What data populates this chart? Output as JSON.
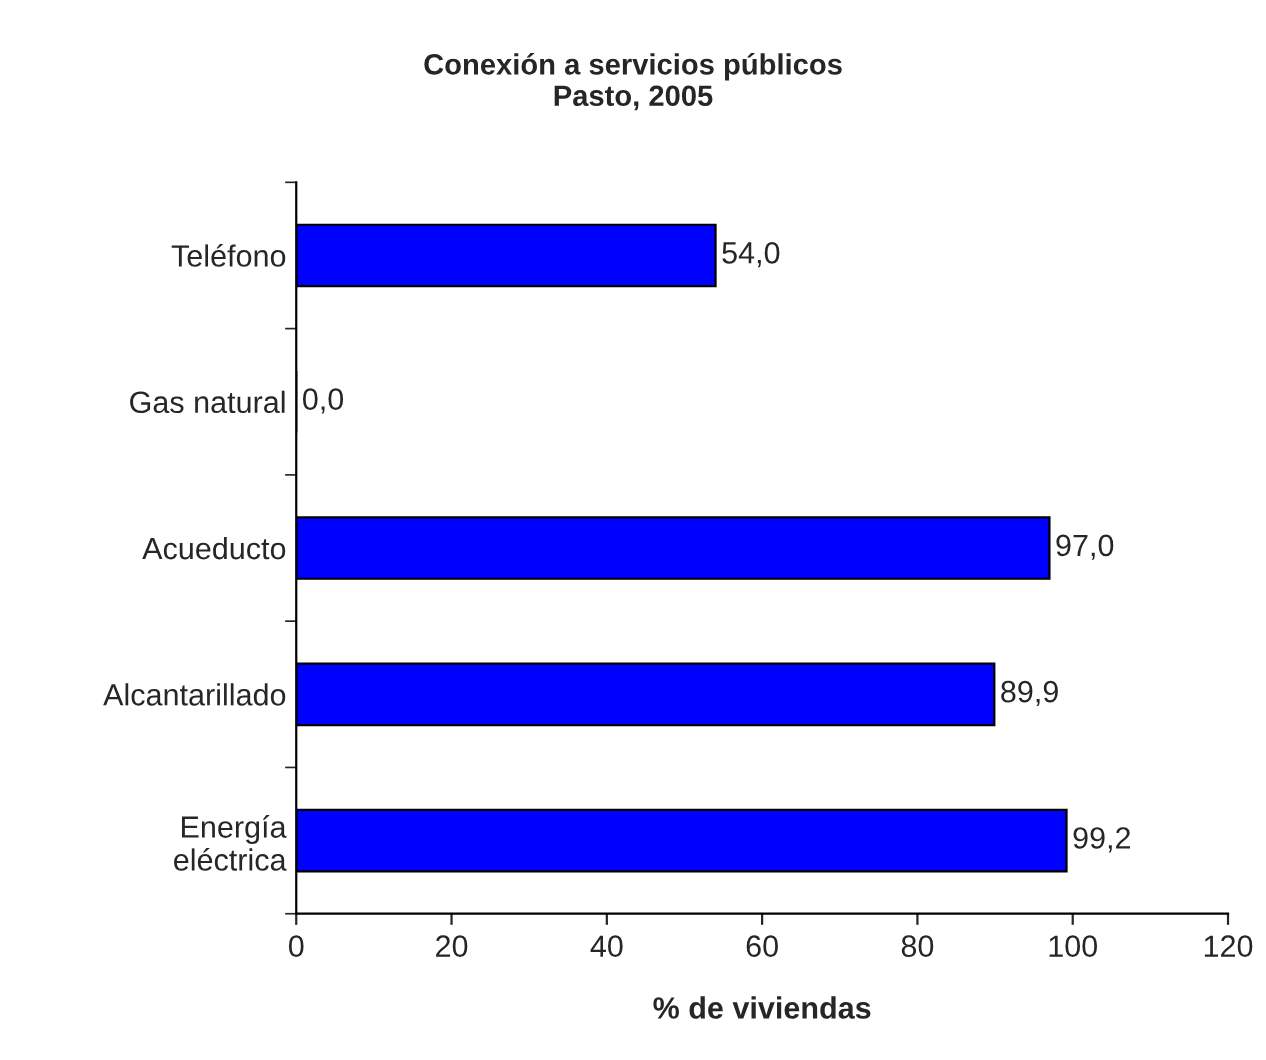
{
  "chart_data": {
    "type": "bar",
    "orientation": "horizontal",
    "title": "Conexión a servicios públicos\nPasto, 2005",
    "xlabel": "% de viviendas",
    "categories": [
      "Teléfono",
      "Gas natural",
      "Acueducto",
      "Alcantarillado",
      "Energía\neléctrica"
    ],
    "values": [
      54.0,
      0.0,
      97.0,
      89.9,
      99.2
    ],
    "value_labels": [
      "54,0",
      "0,0",
      "97,0",
      "89,9",
      "99,2"
    ],
    "color": "#0000ff",
    "xlim": [
      0,
      120
    ],
    "xticks": [
      0,
      20,
      40,
      60,
      80,
      100,
      120
    ],
    "grid": false,
    "legend": false
  }
}
